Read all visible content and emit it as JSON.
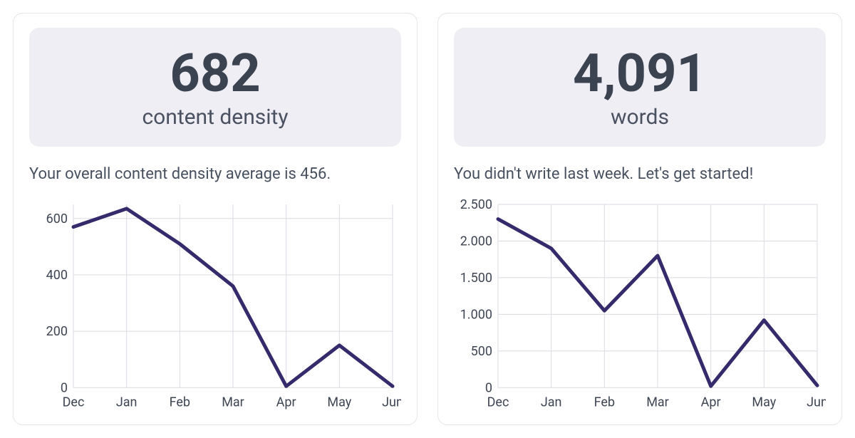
{
  "cards": [
    {
      "metric_value": "682",
      "metric_label": "content density",
      "subtext": "Your overall content density average is 456.",
      "chart": {
        "type": "line",
        "categories": [
          "Dec",
          "Jan",
          "Feb",
          "Mar",
          "Apr",
          "May",
          "Jun"
        ],
        "values": [
          570,
          635,
          510,
          360,
          5,
          150,
          5
        ],
        "ylim": [
          0,
          650
        ],
        "yticks": [
          0,
          200,
          400,
          600
        ],
        "ytick_labels": [
          "0",
          "200",
          "400",
          "600"
        ],
        "line_color": "#352a6b",
        "grid_color": "#d9dbe1",
        "axis_font_size": 18,
        "background_color": "#ffffff"
      }
    },
    {
      "metric_value": "4,091",
      "metric_label": "words",
      "subtext": "You didn't write last week. Let's get started!",
      "chart": {
        "type": "line",
        "categories": [
          "Dec",
          "Jan",
          "Feb",
          "Mar",
          "Apr",
          "May",
          "Jun"
        ],
        "values": [
          2300,
          1900,
          1050,
          1800,
          20,
          920,
          30
        ],
        "ylim": [
          0,
          2500
        ],
        "yticks": [
          0,
          500,
          1000,
          1500,
          2000,
          2500
        ],
        "ytick_labels": [
          "0",
          "500",
          "1.000",
          "1.500",
          "2.000",
          "2.500"
        ],
        "line_color": "#352a6b",
        "grid_color": "#d9dbe1",
        "axis_font_size": 18,
        "background_color": "#ffffff"
      }
    }
  ],
  "colors": {
    "card_border": "#e4e5ea",
    "metric_box_bg": "#efeef4",
    "text_dark": "#3b4351",
    "text_body": "#47505f"
  }
}
